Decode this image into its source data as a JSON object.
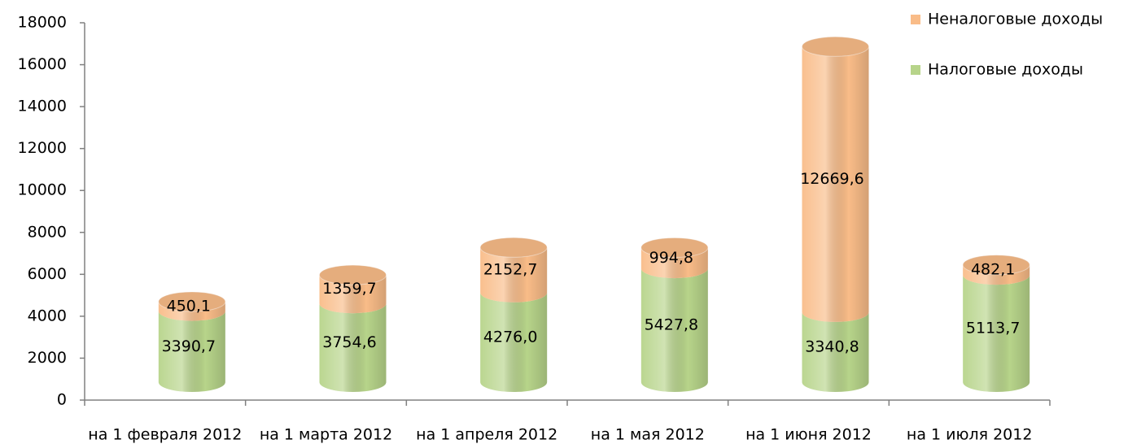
{
  "chart_data": {
    "type": "bar",
    "stacked": true,
    "style": "cylinder-3d",
    "categories": [
      "на 1 февраля 2012",
      "на 1 марта 2012",
      "на 1 апреля 2012",
      "на 1 мая 2012",
      "на 1 июня 2012",
      "на 1 июля 2012"
    ],
    "series": [
      {
        "name": "Налоговые доходы",
        "color": "#b7d48a",
        "values": [
          3390.7,
          3754.6,
          4276.0,
          5427.8,
          3340.8,
          5113.7
        ],
        "value_labels": [
          "3390,7",
          "3754,6",
          "4276,0",
          "5427,8",
          "3340,8",
          "5113,7"
        ]
      },
      {
        "name": "Неналоговые доходы",
        "color": "#f9bc88",
        "values": [
          450.1,
          1359.7,
          2152.7,
          994.8,
          12669.6,
          482.1
        ],
        "value_labels": [
          "450,1",
          "1359,7",
          "2152,7",
          "994,8",
          "12669,6",
          "482,1"
        ]
      }
    ],
    "ylim": [
      0,
      18000
    ],
    "yticks": [
      0,
      2000,
      4000,
      6000,
      8000,
      10000,
      12000,
      14000,
      16000,
      18000
    ],
    "legend": "top-right"
  }
}
